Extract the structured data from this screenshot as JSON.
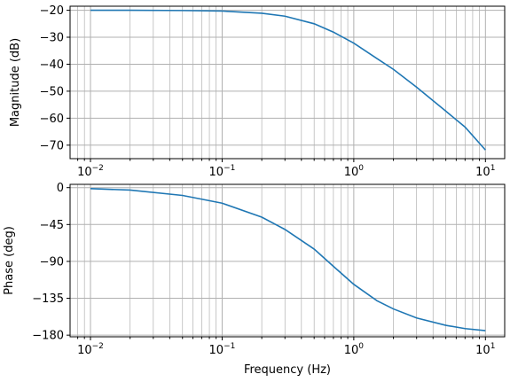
{
  "chart_data": [
    {
      "id": "magnitude",
      "type": "line",
      "xscale": "log",
      "xlim": [
        0.007,
        14
      ],
      "ylim": [
        -75,
        -18.5
      ],
      "grid": true,
      "xlabel": "",
      "ylabel": "Magnitude (dB)",
      "xticks": [
        0.01,
        0.1,
        1,
        10
      ],
      "xtick_labels": [
        [
          "10",
          "−2"
        ],
        [
          "10",
          "−1"
        ],
        [
          "10",
          "0"
        ],
        [
          "10",
          "1"
        ]
      ],
      "yticks": [
        -20,
        -30,
        -40,
        -50,
        -60,
        -70
      ],
      "ytick_labels": [
        "−20",
        "−30",
        "−40",
        "−50",
        "−60",
        "−70"
      ],
      "series": [
        {
          "color": "#1f77b4",
          "x": [
            0.01,
            0.02,
            0.05,
            0.1,
            0.2,
            0.3,
            0.5,
            0.7,
            1,
            1.5,
            2,
            3,
            5,
            7,
            10
          ],
          "y": [
            -20.0,
            -20.0,
            -20.1,
            -20.3,
            -21.1,
            -22.2,
            -25.0,
            -28.1,
            -32.2,
            -37.9,
            -41.9,
            -48.5,
            -57.4,
            -63.3,
            -71.8
          ]
        }
      ]
    },
    {
      "id": "phase",
      "type": "line",
      "xscale": "log",
      "xlim": [
        0.007,
        14
      ],
      "ylim": [
        -182,
        4
      ],
      "grid": true,
      "xlabel": "Frequency (Hz)",
      "ylabel": "Phase (deg)",
      "xticks": [
        0.01,
        0.1,
        1,
        10
      ],
      "xtick_labels": [
        [
          "10",
          "−2"
        ],
        [
          "10",
          "−1"
        ],
        [
          "10",
          "0"
        ],
        [
          "10",
          "1"
        ]
      ],
      "yticks": [
        0,
        -45,
        -90,
        -135,
        -180
      ],
      "ytick_labels": [
        "0",
        "−45",
        "−90",
        "−135",
        "−180"
      ],
      "series": [
        {
          "color": "#1f77b4",
          "x": [
            0.01,
            0.02,
            0.05,
            0.1,
            0.2,
            0.3,
            0.5,
            0.7,
            1,
            1.5,
            2,
            3,
            5,
            7,
            10
          ],
          "y": [
            -1.2,
            -3.0,
            -9.5,
            -19.0,
            -36.0,
            -51.0,
            -75.0,
            -96.0,
            -118.0,
            -138.0,
            -148.0,
            -159.0,
            -168.0,
            -172.0,
            -174.5
          ]
        }
      ]
    }
  ]
}
